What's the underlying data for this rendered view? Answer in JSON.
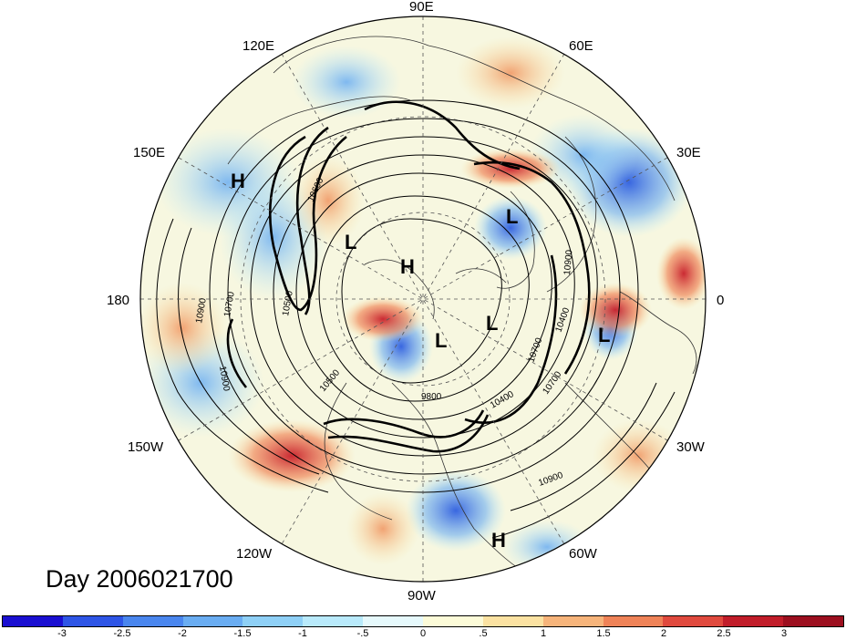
{
  "map": {
    "projection": "north-polar-stereographic",
    "longitude_labels": [
      "90E",
      "120E",
      "60E",
      "150E",
      "30E",
      "180",
      "0",
      "150W",
      "30W",
      "120W",
      "60W",
      "90W"
    ],
    "pressure_centers": [
      {
        "type": "H",
        "name": "high-150E"
      },
      {
        "type": "L",
        "name": "low-siberia"
      },
      {
        "type": "H",
        "name": "high-pole"
      },
      {
        "type": "L",
        "name": "low-scandinavia"
      },
      {
        "type": "L",
        "name": "low-greenland"
      },
      {
        "type": "L",
        "name": "low-canada"
      },
      {
        "type": "L",
        "name": "low-europe"
      },
      {
        "type": "H",
        "name": "high-atlantic"
      }
    ],
    "contour_labels": [
      "10900",
      "10700",
      "10500",
      "10600",
      "10900",
      "10700",
      "10500",
      "10400",
      "10900",
      "10700",
      "10400",
      "9800",
      "10900",
      "10500",
      "10800"
    ],
    "colors": {
      "background_field": "#f7f7e0",
      "coast": "#333333"
    }
  },
  "label": {
    "day": "Day 2006021700"
  },
  "colorbar": {
    "colors": [
      "#1a0fd1",
      "#2e55e6",
      "#4a86ee",
      "#6aadf2",
      "#8fd0f6",
      "#b9eafb",
      "#e6f9fc",
      "#fcfbd8",
      "#fbe2a2",
      "#f6b47b",
      "#ef8358",
      "#e04a3e",
      "#c11d2a",
      "#9c0f1f"
    ],
    "tick_labels": [
      "-3",
      "-2.5",
      "-2",
      "-1.5",
      "-1",
      "-.5",
      "0",
      ".5",
      "1",
      "1.5",
      "2",
      "2.5",
      "3"
    ]
  }
}
